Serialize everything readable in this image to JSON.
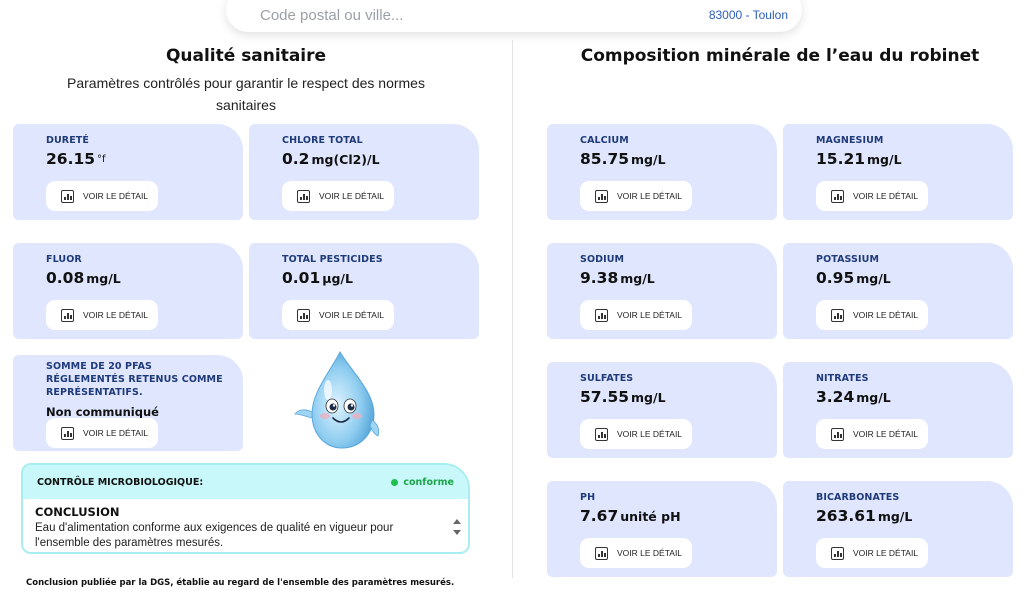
{
  "search": {
    "placeholder": "Code postal ou ville...",
    "location": "83000 - Toulon"
  },
  "left": {
    "title": "Qualité sanitaire",
    "subtitle": "Paramètres contrôlés pour garantir le respect des normes sanitaires",
    "cards": [
      {
        "label": "DURETÉ",
        "value": "26.15",
        "unit": "°f"
      },
      {
        "label": "CHLORE TOTAL",
        "value": "0.2",
        "unit": "mg(Cl2)/L"
      },
      {
        "label": "FLUOR",
        "value": "0.08",
        "unit": "mg/L"
      },
      {
        "label": "TOTAL PESTICIDES",
        "value": "0.01",
        "unit": "µg/L"
      }
    ],
    "pfas": {
      "label": "SOMME DE 20 PFAS RÉGLEMENTÉS RETENUS COMME REPRÉSENTATIFS.",
      "status": "Non communiqué"
    },
    "micro": {
      "title": "CONTRÔLE MICROBIOLOGIQUE:",
      "status": "conforme",
      "conclusion_title": "CONCLUSION",
      "conclusion_text": "Eau d'alimentation conforme aux exigences de qualité en vigueur pour l'ensemble des paramètres mesurés."
    },
    "footnote": "Conclusion publiée par la DGS, établie au regard de l'ensemble des paramètres mesurés."
  },
  "right": {
    "title": "Composition minérale de l’eau du robinet",
    "cards": [
      {
        "label": "CALCIUM",
        "value": "85.75",
        "unit": "mg/L"
      },
      {
        "label": "MAGNESIUM",
        "value": "15.21",
        "unit": "mg/L"
      },
      {
        "label": "SODIUM",
        "value": "9.38",
        "unit": "mg/L"
      },
      {
        "label": "POTASSIUM",
        "value": "0.95",
        "unit": "mg/L"
      },
      {
        "label": "SULFATES",
        "value": "57.55",
        "unit": "mg/L"
      },
      {
        "label": "NITRATES",
        "value": "3.24",
        "unit": "mg/L"
      },
      {
        "label": "PH",
        "value": "7.67",
        "unit": "unité pH"
      },
      {
        "label": "BICARBONATES",
        "value": "263.61",
        "unit": "mg/L"
      }
    ]
  },
  "detail_label": "VOIR LE DÉTAIL",
  "colors": {
    "card_bg": "#dfe6fd",
    "label": "#1f3a7a",
    "micro_head": "#c8f8f9",
    "conforme": "#1cc04f",
    "location_link": "#2d5fc0"
  },
  "icons": {
    "detail": "bar-chart-icon",
    "status": "status-dot-icon",
    "mascot": "water-drop-mascot"
  }
}
